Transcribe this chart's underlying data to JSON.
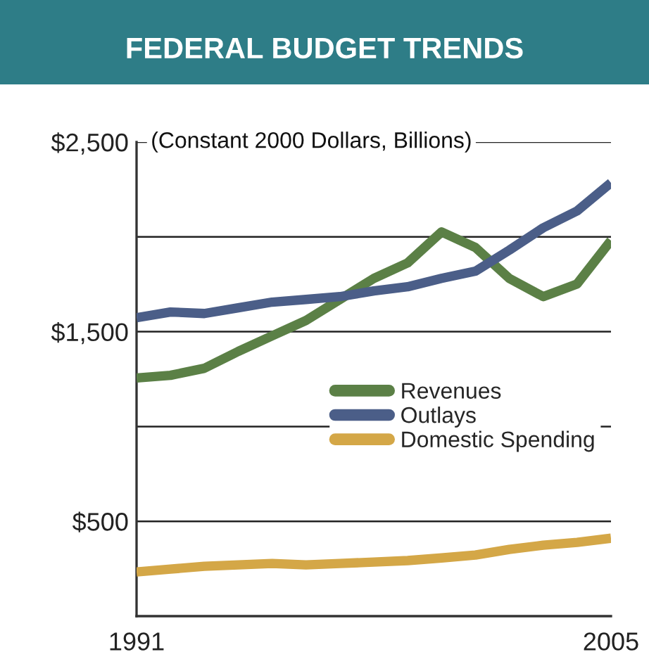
{
  "chart_data": {
    "type": "line",
    "title": "FEDERAL BUDGET TRENDS",
    "subtitle": "(Constant 2000 Dollars, Billions)",
    "x": [
      1991,
      1992,
      1993,
      1994,
      1995,
      1996,
      1997,
      1998,
      1999,
      2000,
      2001,
      2002,
      2003,
      2004,
      2005
    ],
    "series": [
      {
        "name": "Revenues",
        "color": "#5b8046",
        "values": [
          1256,
          1270,
          1307,
          1396,
          1478,
          1559,
          1670,
          1781,
          1863,
          2026,
          1944,
          1781,
          1685,
          1752,
          1981
        ]
      },
      {
        "name": "Outlays",
        "color": "#4b5e88",
        "values": [
          1574,
          1604,
          1596,
          1626,
          1656,
          1670,
          1685,
          1715,
          1737,
          1781,
          1819,
          1930,
          2048,
          2137,
          2285
        ]
      },
      {
        "name": "Domestic Spending",
        "color": "#d4a747",
        "values": [
          233,
          248,
          263,
          270,
          278,
          270,
          278,
          285,
          293,
          307,
          322,
          352,
          374,
          389,
          411
        ]
      }
    ],
    "xlim": [
      1991,
      2005
    ],
    "xticks": [
      1991,
      2005
    ],
    "ylim": [
      0,
      2500
    ],
    "yticks": [
      {
        "value": 500,
        "label": "$500"
      },
      {
        "value": 1000,
        "label": null
      },
      {
        "value": 1500,
        "label": "$1,500"
      },
      {
        "value": 2000,
        "label": null
      },
      {
        "value": 2500,
        "label": "$2,500"
      }
    ],
    "grid": "y",
    "legend": "right",
    "marker": "none",
    "line_style": "solid"
  }
}
